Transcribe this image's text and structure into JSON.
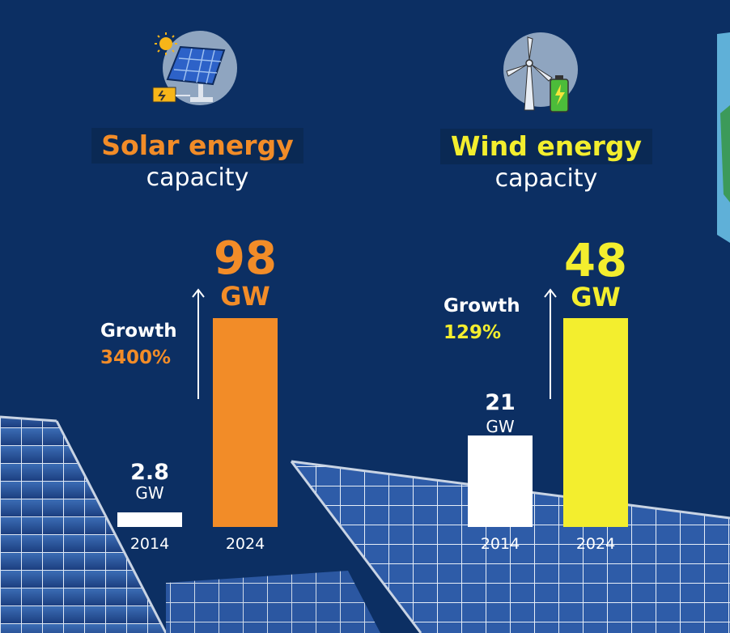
{
  "chart_data": [
    {
      "type": "bar",
      "title": "Solar energy",
      "subtitle": "capacity",
      "categories": [
        "2014",
        "2024"
      ],
      "values": [
        2.8,
        98
      ],
      "value_labels": [
        "2.8",
        "98"
      ],
      "unit": "GW",
      "growth_label": "Growth",
      "growth_value": "3400%",
      "accent": "#f28c28",
      "bar_colors": [
        "#ffffff",
        "#f28c28"
      ],
      "icon": "solar-panel-icon"
    },
    {
      "type": "bar",
      "title": "Wind energy",
      "subtitle": "capacity",
      "categories": [
        "2014",
        "2024"
      ],
      "values": [
        21,
        48
      ],
      "value_labels": [
        "21",
        "48"
      ],
      "unit": "GW",
      "growth_label": "Growth",
      "growth_value": "129%",
      "accent": "#f3ee2e",
      "bar_colors": [
        "#ffffff",
        "#f3ee2e"
      ],
      "icon": "wind-turbine-icon"
    }
  ],
  "colors": {
    "background": "#0c2f63",
    "title_box": "#0a2954"
  }
}
